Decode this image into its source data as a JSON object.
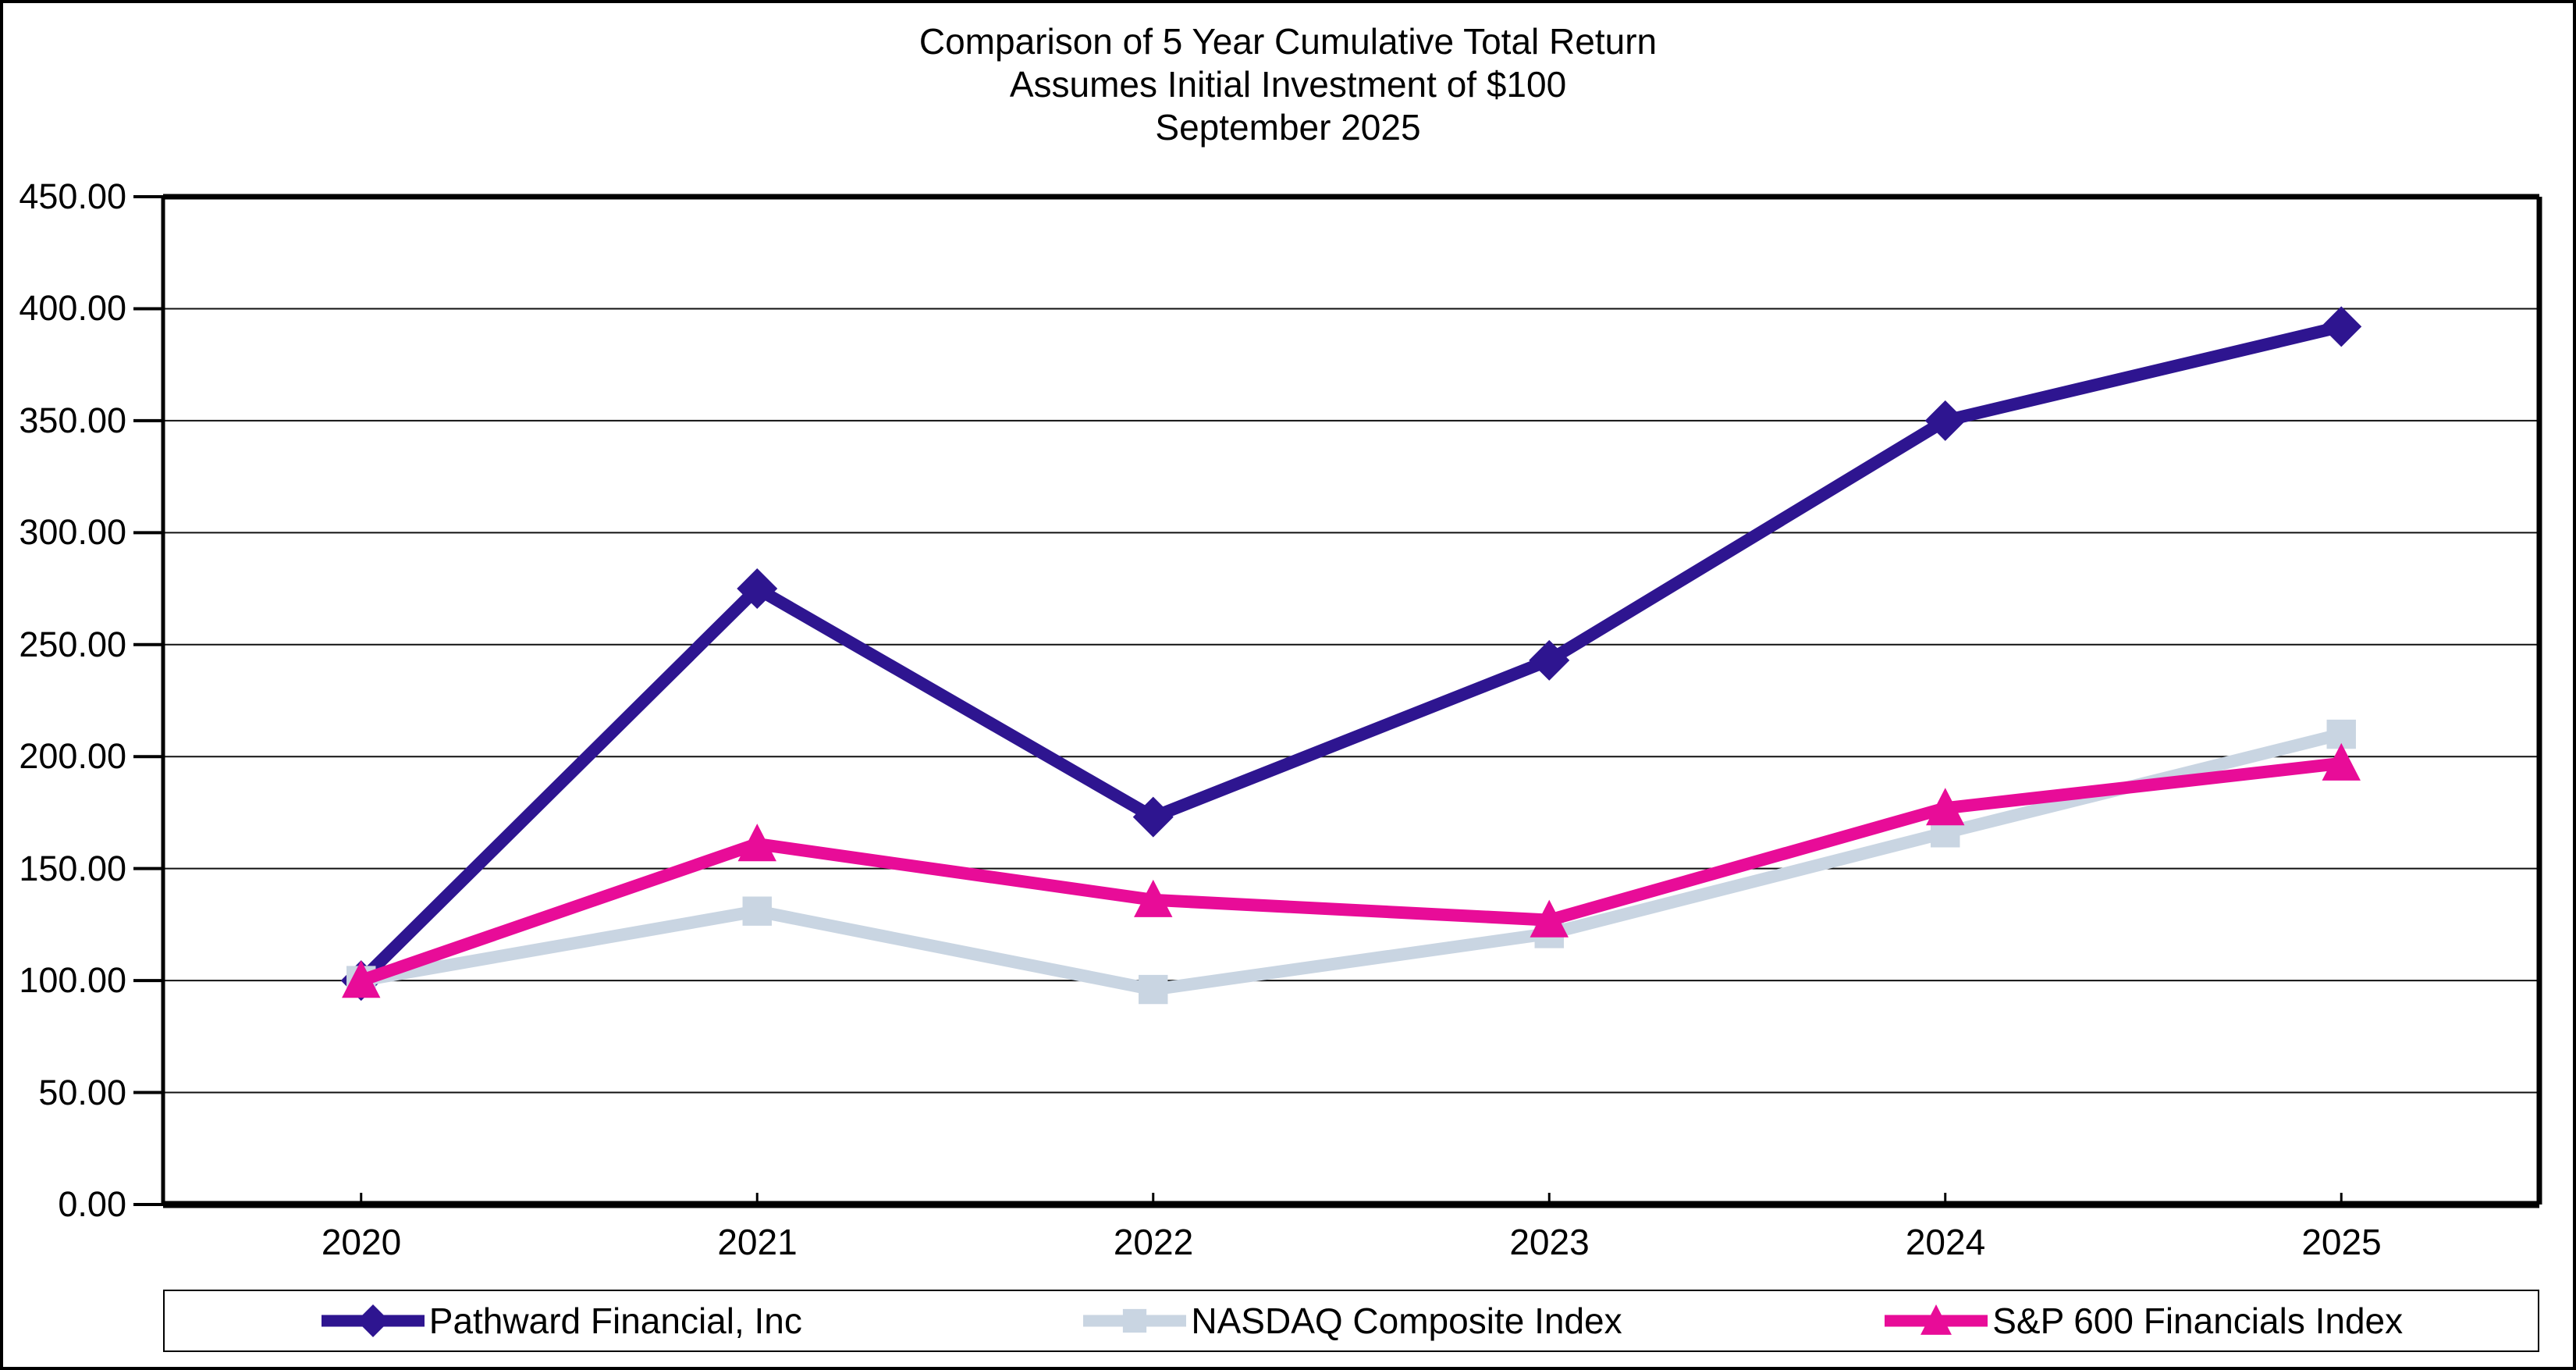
{
  "title": {
    "line1": "Comparison of 5 Year Cumulative Total Return",
    "line2": "Assumes Initial Investment of $100",
    "line3": "September 2025"
  },
  "chart_data": {
    "type": "line",
    "x_categories": [
      "2020",
      "2021",
      "2022",
      "2023",
      "2024",
      "2025"
    ],
    "y_ticks": [
      0,
      50,
      100,
      150,
      200,
      250,
      300,
      350,
      400,
      450
    ],
    "y_tick_labels": [
      "0.00",
      "50.00",
      "100.00",
      "150.00",
      "200.00",
      "250.00",
      "300.00",
      "350.00",
      "400.00",
      "450.00"
    ],
    "ylim": [
      0,
      450
    ],
    "grid": "horizontal",
    "legend_position": "bottom",
    "series": [
      {
        "name": "Pathward Financial, Inc",
        "marker": "diamond",
        "color": "#2E1590",
        "values": [
          100,
          275,
          173,
          243,
          350,
          392
        ]
      },
      {
        "name": "NASDAQ Composite Index",
        "marker": "square",
        "color": "#C9D5E2",
        "values": [
          100,
          131,
          96,
          121,
          166,
          210
        ]
      },
      {
        "name": "S&P 600 Financials Index",
        "marker": "triangle",
        "color": "#E80C98",
        "values": [
          100,
          161,
          136,
          127,
          177,
          197
        ]
      }
    ]
  }
}
